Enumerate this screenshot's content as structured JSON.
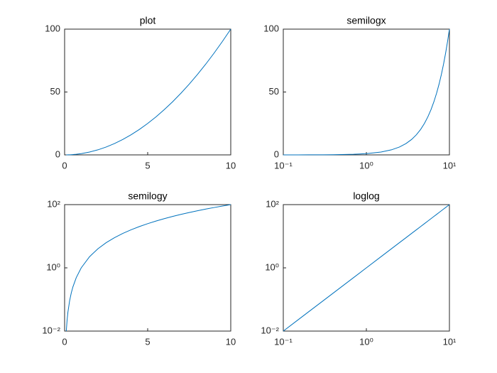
{
  "chart_data": [
    {
      "type": "line",
      "title": "plot",
      "xscale": "linear",
      "yscale": "linear",
      "x": [
        0.1,
        0.15,
        0.2,
        0.3,
        0.4,
        0.5,
        0.7,
        1,
        1.5,
        2,
        2.5,
        3,
        3.5,
        4,
        4.5,
        5,
        5.5,
        6,
        6.5,
        7,
        7.5,
        8,
        8.5,
        9,
        9.5,
        10
      ],
      "series": [
        {
          "color": "#0072bd",
          "values": [
            0.01,
            0.0225,
            0.04,
            0.09,
            0.16,
            0.25,
            0.49,
            1,
            2.25,
            4,
            6.25,
            9,
            12.25,
            16,
            20.25,
            25,
            30.25,
            36,
            42.25,
            49,
            56.25,
            64,
            72.25,
            81,
            90.25,
            100
          ]
        }
      ],
      "xlim": [
        0,
        10
      ],
      "xticks": [
        0,
        5,
        10
      ],
      "ylim": [
        0,
        100
      ],
      "yticks": [
        0,
        50,
        100
      ]
    },
    {
      "type": "line",
      "title": "semilogx",
      "xscale": "log",
      "yscale": "linear",
      "x": [
        0.1,
        0.15,
        0.2,
        0.3,
        0.4,
        0.5,
        0.7,
        1,
        1.5,
        2,
        2.5,
        3,
        3.5,
        4,
        4.5,
        5,
        5.5,
        6,
        6.5,
        7,
        7.5,
        8,
        8.5,
        9,
        9.5,
        10
      ],
      "series": [
        {
          "color": "#0072bd",
          "values": [
            0.01,
            0.0225,
            0.04,
            0.09,
            0.16,
            0.25,
            0.49,
            1,
            2.25,
            4,
            6.25,
            9,
            12.25,
            16,
            20.25,
            25,
            30.25,
            36,
            42.25,
            49,
            56.25,
            64,
            72.25,
            81,
            90.25,
            100
          ]
        }
      ],
      "xlim": [
        0.1,
        10
      ],
      "xticks": [
        {
          "value": 0.1,
          "label": "10⁻¹"
        },
        {
          "value": 1,
          "label": "10⁰"
        },
        {
          "value": 10,
          "label": "10¹"
        }
      ],
      "ylim": [
        0,
        100
      ],
      "yticks": [
        0,
        50,
        100
      ]
    },
    {
      "type": "line",
      "title": "semilogy",
      "xscale": "linear",
      "yscale": "log",
      "x": [
        0.1,
        0.15,
        0.2,
        0.3,
        0.4,
        0.5,
        0.7,
        1,
        1.5,
        2,
        2.5,
        3,
        3.5,
        4,
        4.5,
        5,
        5.5,
        6,
        6.5,
        7,
        7.5,
        8,
        8.5,
        9,
        9.5,
        10
      ],
      "series": [
        {
          "color": "#0072bd",
          "values": [
            0.01,
            0.0225,
            0.04,
            0.09,
            0.16,
            0.25,
            0.49,
            1,
            2.25,
            4,
            6.25,
            9,
            12.25,
            16,
            20.25,
            25,
            30.25,
            36,
            42.25,
            49,
            56.25,
            64,
            72.25,
            81,
            90.25,
            100
          ]
        }
      ],
      "xlim": [
        0,
        10
      ],
      "xticks": [
        0,
        5,
        10
      ],
      "ylim": [
        0.01,
        100
      ],
      "yticks": [
        {
          "value": 0.01,
          "label": "10⁻²"
        },
        {
          "value": 1,
          "label": "10⁰"
        },
        {
          "value": 100,
          "label": "10²"
        }
      ]
    },
    {
      "type": "line",
      "title": "loglog",
      "xscale": "log",
      "yscale": "log",
      "x": [
        0.1,
        0.15,
        0.2,
        0.3,
        0.4,
        0.5,
        0.7,
        1,
        1.5,
        2,
        2.5,
        3,
        3.5,
        4,
        4.5,
        5,
        5.5,
        6,
        6.5,
        7,
        7.5,
        8,
        8.5,
        9,
        9.5,
        10
      ],
      "series": [
        {
          "color": "#0072bd",
          "values": [
            0.01,
            0.0225,
            0.04,
            0.09,
            0.16,
            0.25,
            0.49,
            1,
            2.25,
            4,
            6.25,
            9,
            12.25,
            16,
            20.25,
            25,
            30.25,
            36,
            42.25,
            49,
            56.25,
            64,
            72.25,
            81,
            90.25,
            100
          ]
        }
      ],
      "xlim": [
        0.1,
        10
      ],
      "xticks": [
        {
          "value": 0.1,
          "label": "10⁻¹"
        },
        {
          "value": 1,
          "label": "10⁰"
        },
        {
          "value": 10,
          "label": "10¹"
        }
      ],
      "ylim": [
        0.01,
        100
      ],
      "yticks": [
        {
          "value": 0.01,
          "label": "10⁻²"
        },
        {
          "value": 1,
          "label": "10⁰"
        },
        {
          "value": 100,
          "label": "10²"
        }
      ]
    }
  ]
}
